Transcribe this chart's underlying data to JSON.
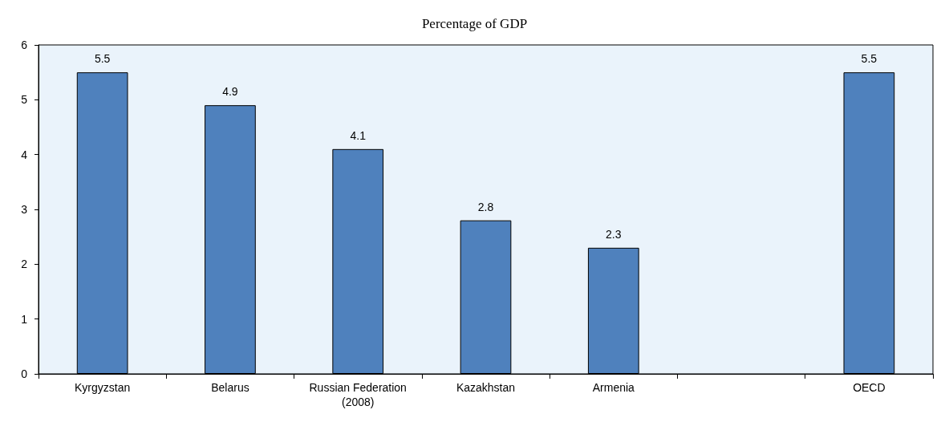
{
  "chart_data": {
    "type": "bar",
    "title": "Percentage of GDP",
    "categories": [
      "Kyrgyzstan",
      "Belarus",
      "Russian Federation\n(2008)",
      "Kazakhstan",
      "Armenia",
      null,
      "OECD"
    ],
    "values": [
      5.5,
      4.9,
      4.1,
      2.8,
      2.3,
      null,
      5.5
    ],
    "color": "#4f81bd",
    "ylim": [
      0,
      6
    ],
    "yticks": [
      0,
      1,
      2,
      3,
      4,
      5,
      6
    ],
    "grid": false,
    "data_labels": true
  }
}
